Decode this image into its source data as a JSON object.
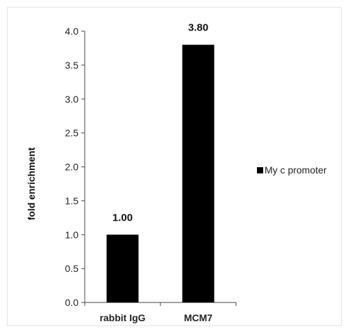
{
  "chart_data": {
    "type": "bar",
    "categories": [
      "rabbit IgG",
      "MCM7"
    ],
    "series": [
      {
        "name": "My c promoter",
        "values": [
          1.0,
          3.8
        ],
        "color": "#000000"
      }
    ],
    "data_labels": [
      "1.00",
      "3.80"
    ],
    "ylabel": "fold enrichment",
    "xlabel": "",
    "title": "",
    "ylim": [
      0,
      4.0
    ],
    "yticks": [
      "0.0",
      "0.5",
      "1.0",
      "1.5",
      "2.0",
      "2.5",
      "3.0",
      "3.5",
      "4.0"
    ],
    "grid": false,
    "legend_position": "right"
  }
}
